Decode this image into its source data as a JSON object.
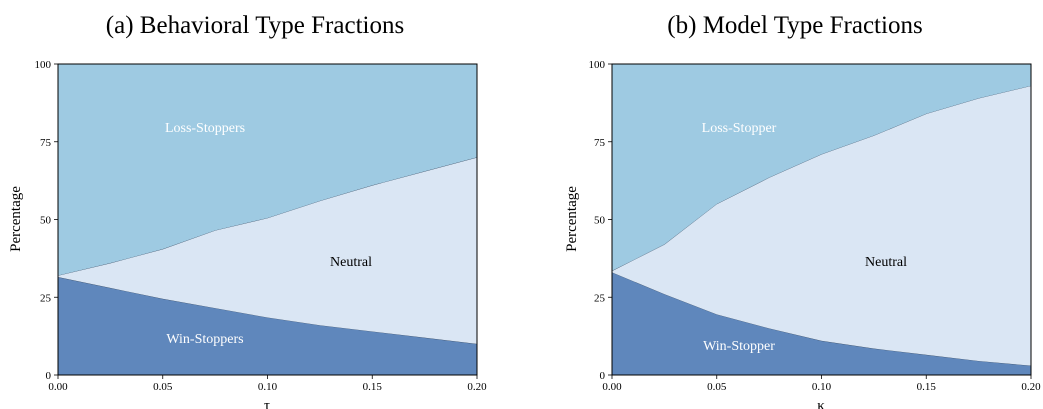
{
  "chart_data": [
    {
      "type": "area",
      "stacked": true,
      "title": "(a) Behavioral Type Fractions",
      "xlabel": "τ",
      "ylabel": "Percentage",
      "xlim": [
        0,
        0.2
      ],
      "ylim": [
        0,
        100
      ],
      "xticks": [
        "0.00",
        "0.05",
        "0.10",
        "0.15",
        "0.20"
      ],
      "yticks": [
        "0",
        "25",
        "50",
        "75",
        "100"
      ],
      "grid": false,
      "x": [
        0.0,
        0.025,
        0.05,
        0.075,
        0.1,
        0.125,
        0.15,
        0.175,
        0.2
      ],
      "series": [
        {
          "name": "Win-Stoppers",
          "color": "#5f87bc",
          "values": [
            31.5,
            28.0,
            24.5,
            21.5,
            18.5,
            16.0,
            14.0,
            12.0,
            10.0
          ]
        },
        {
          "name": "Neutral",
          "color": "#dae6f4",
          "values": [
            0.5,
            8.0,
            16.0,
            25.0,
            32.0,
            40.0,
            47.0,
            53.5,
            60.0
          ]
        },
        {
          "name": "Loss-Stoppers",
          "color": "#9ecae2",
          "values": [
            68.0,
            64.0,
            59.5,
            53.5,
            49.5,
            44.0,
            39.0,
            34.5,
            30.0
          ]
        }
      ],
      "annotations": [
        "Loss-Stoppers",
        "Neutral",
        "Win-Stoppers"
      ]
    },
    {
      "type": "area",
      "stacked": true,
      "title": "(b) Model Type Fractions",
      "xlabel": "κ",
      "ylabel": "Percentage",
      "xlim": [
        0,
        0.2
      ],
      "ylim": [
        0,
        100
      ],
      "xticks": [
        "0.00",
        "0.05",
        "0.10",
        "0.15",
        "0.20"
      ],
      "yticks": [
        "0",
        "25",
        "50",
        "75",
        "100"
      ],
      "grid": false,
      "x": [
        0.0,
        0.025,
        0.05,
        0.075,
        0.1,
        0.125,
        0.15,
        0.175,
        0.2
      ],
      "series": [
        {
          "name": "Win-Stopper",
          "color": "#5f87bc",
          "values": [
            33.0,
            26.0,
            19.5,
            15.0,
            11.0,
            8.5,
            6.5,
            4.5,
            3.0
          ]
        },
        {
          "name": "Neutral",
          "color": "#dae6f4",
          "values": [
            0.5,
            16.0,
            35.5,
            48.5,
            60.0,
            68.5,
            77.5,
            84.5,
            90.0
          ]
        },
        {
          "name": "Loss-Stopper",
          "color": "#9ecae2",
          "values": [
            66.5,
            58.0,
            45.0,
            36.5,
            29.0,
            23.0,
            16.0,
            11.0,
            7.0
          ]
        }
      ],
      "annotations": [
        "Loss-Stopper",
        "Neutral",
        "Win-Stopper"
      ]
    }
  ]
}
